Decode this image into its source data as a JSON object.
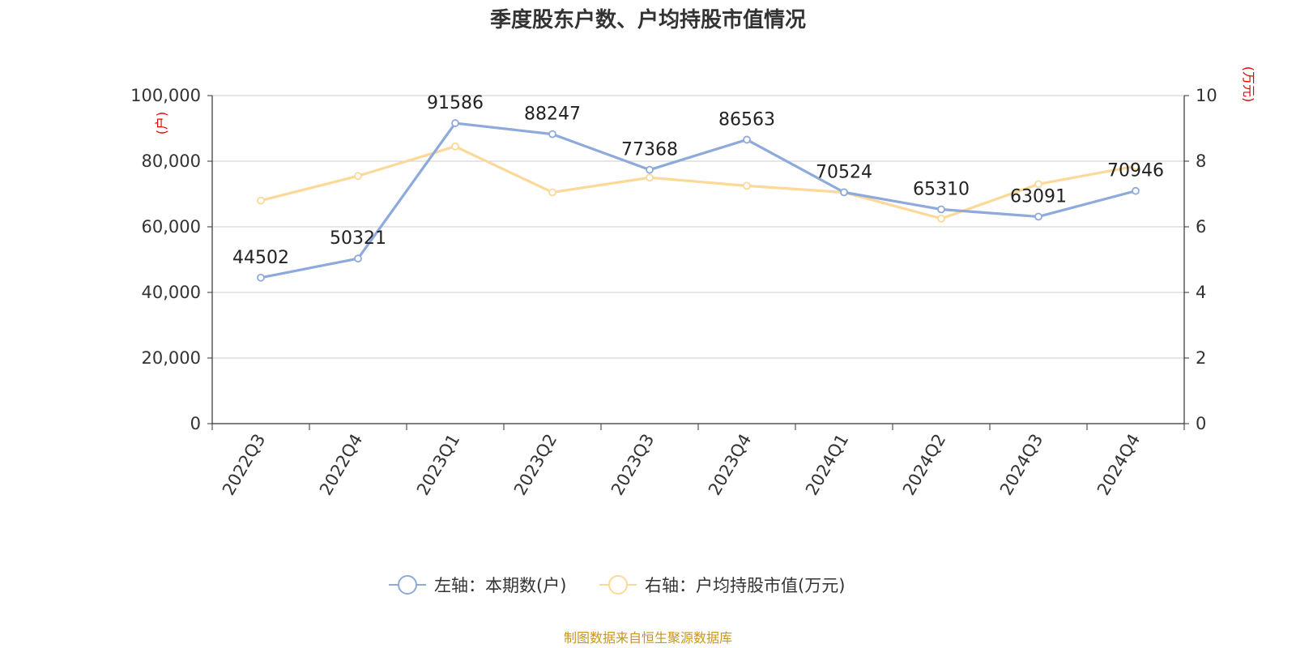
{
  "title": "季度股东户数、户均持股市值情况",
  "source": "制图数据来自恒生聚源数据库",
  "colors": {
    "series1": "#8eaadb",
    "series2": "#fcd899",
    "unit": "#e60000",
    "source": "#c8961e",
    "grid": "#cccccc",
    "axis": "#333333"
  },
  "chart_data": {
    "type": "line",
    "title": "季度股东户数、户均持股市值情况",
    "categories": [
      "2022Q3",
      "2022Q4",
      "2023Q1",
      "2023Q2",
      "2023Q3",
      "2023Q4",
      "2024Q1",
      "2024Q2",
      "2024Q3",
      "2024Q4"
    ],
    "left_axis": {
      "unit": "(户)",
      "range": [
        0,
        100000
      ],
      "ticks": [
        "0",
        "20,000",
        "40,000",
        "60,000",
        "80,000",
        "100,000"
      ]
    },
    "right_axis": {
      "unit": "(万元)",
      "range": [
        0,
        10
      ],
      "ticks": [
        "0",
        "2",
        "4",
        "6",
        "8",
        "10"
      ]
    },
    "grid": true,
    "legend_position": "bottom-center",
    "series": [
      {
        "name": "左轴：本期数(户)",
        "axis": "left",
        "values": [
          44502,
          50321,
          91586,
          88247,
          77368,
          86563,
          70524,
          65310,
          63091,
          70946
        ],
        "labels": [
          "44502",
          "50321",
          "91586",
          "88247",
          "77368",
          "86563",
          "70524",
          "65310",
          "63091",
          "70946"
        ]
      },
      {
        "name": "右轴：户均持股市值(万元)",
        "axis": "right",
        "values": [
          6.8,
          7.55,
          8.45,
          7.05,
          7.5,
          7.25,
          7.05,
          6.25,
          7.3,
          7.85
        ]
      }
    ]
  }
}
